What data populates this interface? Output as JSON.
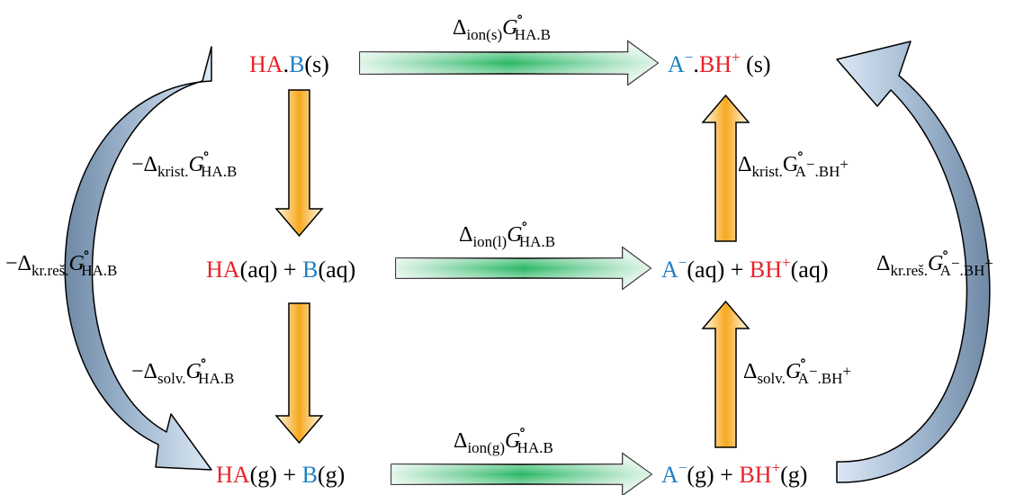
{
  "colors": {
    "acid": "#e8222a",
    "base": "#1f7fc4",
    "gibbs_arrow": "#2bb866",
    "gibbs_arrow_light": "#ecf8f0",
    "step_arrow": "#f6a81e",
    "step_arrow_light": "#fff9e8",
    "cycle_arrow": "#7d98b3",
    "cycle_arrow_light": "#dbe8f4"
  },
  "species": {
    "solid_neutral": {
      "acid": "HA",
      "dot": ".",
      "base": "B",
      "state": "(s)"
    },
    "solid_ionic": {
      "anion": "A",
      "minus": "−",
      "dot": ".",
      "cation": "BH",
      "plus": "+",
      "state": " (s)"
    },
    "aq_neutral": {
      "acid": "HA",
      "acid_state": "(aq)",
      "plus_sign": " + ",
      "base": "B",
      "base_state": "(aq)"
    },
    "aq_ionic": {
      "anion": "A",
      "minus": "−",
      "anion_state": "(aq)",
      "plus_sign": " + ",
      "cation": "BH",
      "plus": "+",
      "cation_state": "(aq)"
    },
    "gas_neutral": {
      "acid": "HA",
      "acid_state": "(g)",
      "plus_sign": " + ",
      "base": "B",
      "base_state": "(g)"
    },
    "gas_ionic": {
      "anion": "A",
      "minus": "−",
      "anion_state": "(g)",
      "plus_sign": " + ",
      "cation": "BH",
      "plus": "+",
      "cation_state": "(g)"
    }
  },
  "symbols": {
    "delta": "Δ",
    "G": "G",
    "degree": "∘",
    "neg": "−",
    "HAB": "HA.B",
    "ABH": "A",
    "ABH_minus": "−",
    "ABH_rest": ".BH",
    "ABH_plus": "+"
  },
  "labels": {
    "ion_s": "ion(s)",
    "ion_l": "ion(l)",
    "ion_g": "ion(g)",
    "krist": "krist.",
    "solv": "solv.",
    "krres": "kr.reš."
  }
}
